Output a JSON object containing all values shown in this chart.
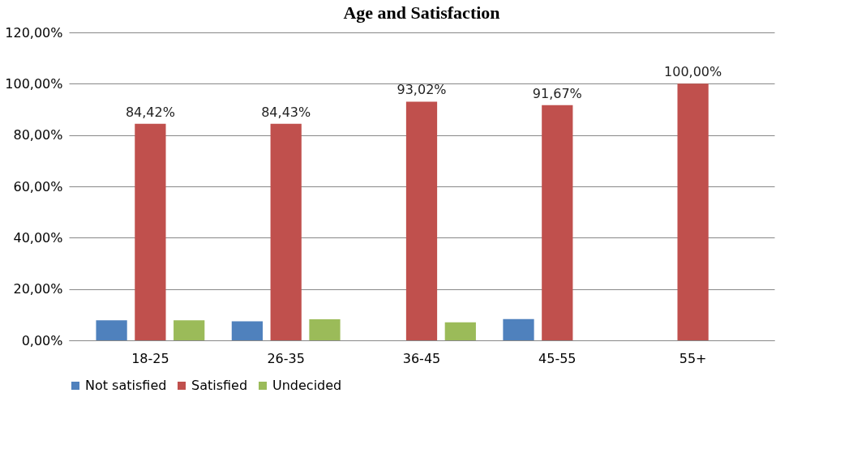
{
  "chart_data": {
    "type": "bar",
    "title": "Age and Satisfaction",
    "categories": [
      "18-25",
      "26-35",
      "36-45",
      "45-55",
      "55+"
    ],
    "series": [
      {
        "name": "Not satisfied",
        "color": "#4f81bd",
        "values": [
          7.8,
          7.4,
          null,
          8.3,
          null
        ]
      },
      {
        "name": "Satisfied",
        "color": "#c0504d",
        "values": [
          84.42,
          84.43,
          93.02,
          91.67,
          100
        ],
        "value_labels": [
          "84,42%",
          "84,43%",
          "93,02%",
          "91,67%",
          "100,00%"
        ]
      },
      {
        "name": "Undecided",
        "color": "#9bbb59",
        "values": [
          7.8,
          8.2,
          7.0,
          null,
          null
        ]
      }
    ],
    "ylim": [
      0,
      120
    ],
    "yticks": [
      {
        "value": 0,
        "label": "0,00%"
      },
      {
        "value": 20,
        "label": "20,00%"
      },
      {
        "value": 40,
        "label": "40,00%"
      },
      {
        "value": 60,
        "label": "60,00%"
      },
      {
        "value": 80,
        "label": "80,00%"
      },
      {
        "value": 100,
        "label": "100,00%"
      },
      {
        "value": 120,
        "label": "120,00%"
      }
    ],
    "grid": "y",
    "legend": "bottom"
  }
}
